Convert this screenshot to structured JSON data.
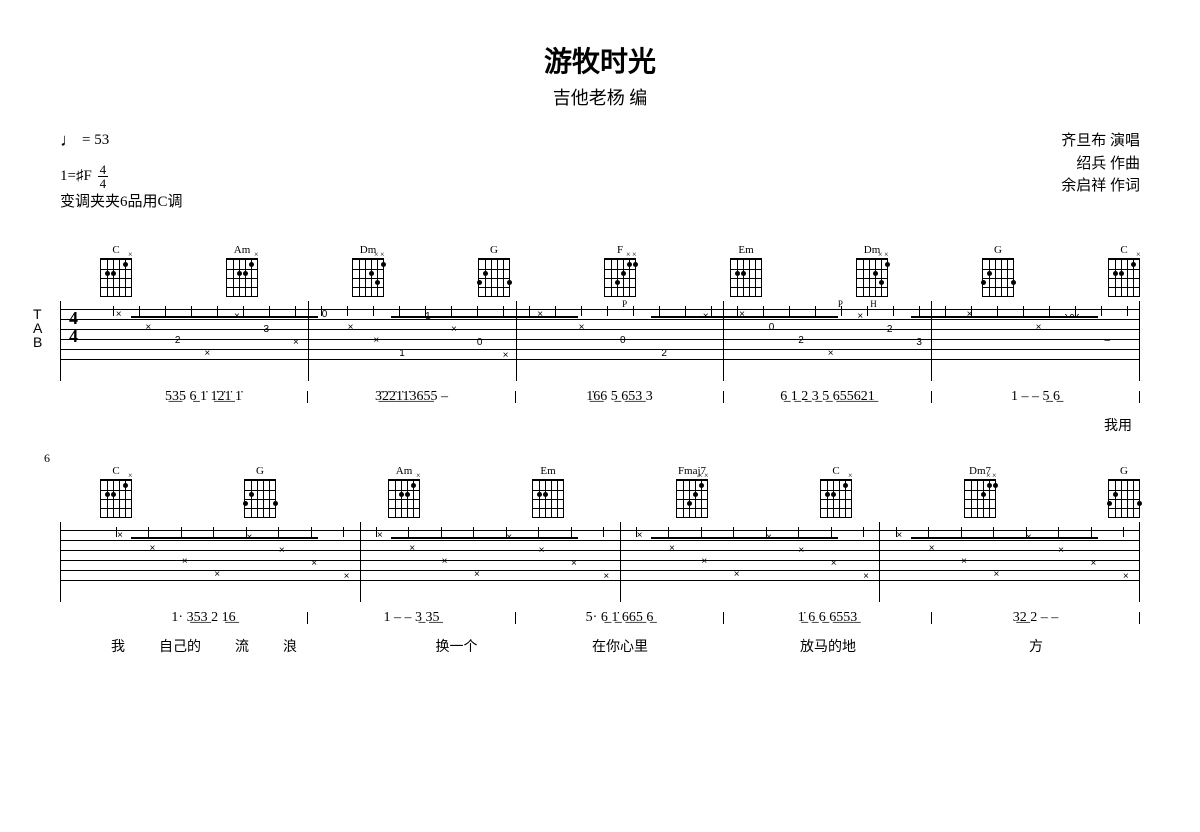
{
  "header": {
    "title": "游牧时光",
    "subtitle": "吉他老杨 编",
    "tempo_note": "♩",
    "tempo_eq": " = 53",
    "credits": [
      "齐旦布 演唱",
      "绍兵 作曲",
      "余启祥 作词"
    ],
    "key_line": "1=♯F",
    "time_top": "4",
    "time_bot": "4",
    "capo_line": "变调夹夹6品用C调"
  },
  "system1": {
    "chords": [
      "C",
      "Am",
      "Dm",
      "G",
      "F",
      "Em",
      "Dm",
      "G",
      "C"
    ],
    "tab_label_t": "T",
    "tab_label_a": "A",
    "tab_label_b": "B",
    "timesig_top": "4",
    "timesig_bot": "4",
    "techniques": [
      "P",
      "P",
      "H"
    ],
    "tab_measures": [
      [
        "×",
        "×",
        "2",
        "×",
        "×",
        "3",
        "×"
      ],
      [
        "0",
        "×",
        "×",
        "1",
        "1",
        "×",
        "0",
        "×"
      ],
      [
        "×",
        "×",
        "0",
        "2",
        "×"
      ],
      [
        "×",
        "0",
        "2",
        "×",
        "×",
        "2",
        "3"
      ],
      [
        "×",
        "×",
        "–"
      ]
    ],
    "tab_nums": {
      "m1": [
        "×",
        "2",
        "× 3×"
      ],
      "m2": [
        "0 ×× 1 1",
        "× 0 ×"
      ],
      "m3": [
        "0 2"
      ],
      "m4": [
        "1 0 3 0 2",
        "2 ×× 2",
        "3"
      ],
      "m5": []
    },
    "jianpu": [
      "5̲3̲5  6̲ 1̇ 1̲̇2̲̇1̲̇ 1̇",
      "3̲̇2̲̇2̲̇1̲̇1̲̇3̲6̲5̲5  –",
      "1̲̇6̲6  5̲ 6̲5̲3̲ 3",
      "6̲ 1̲ 2̲ 3̲ 5̲ 6̲5̲5̲6̲2̲1̲",
      "1  –  –  5̲ 6̲"
    ],
    "lyrics5": "我用"
  },
  "system2": {
    "bar_number": "6",
    "chords": [
      "C",
      "G",
      "Am",
      "Em",
      "Fmaj7",
      "C",
      "Dm7",
      "G"
    ],
    "tab_measures": [
      [
        "×",
        "×",
        "×",
        "×",
        "×",
        "×",
        "×",
        "×"
      ],
      [
        "×",
        "×",
        "×",
        "×",
        "×",
        "×",
        "×",
        "×"
      ],
      [
        "×",
        "×",
        "×",
        "×",
        "×",
        "×",
        "×",
        "×"
      ],
      [
        "×",
        "×",
        "×",
        "×",
        "×",
        "×",
        "×",
        "×"
      ]
    ],
    "jianpu": [
      "1·  3̲5̲3̲ 2  1̲6̲",
      "1  –  –  3̲ 3̲5̲",
      "5·  6̲ 1̲̇ 6̲6̲5̲  6̲",
      "1̲̇ 6̲ 6̲ 6̲5̲5̲3̲",
      "3̲2̲ 2  –  –"
    ],
    "lyrics": [
      [
        "我",
        "自己的",
        "流",
        "浪"
      ],
      [
        "",
        "换一个"
      ],
      [
        "在你心里"
      ],
      [
        "放马的地"
      ],
      [
        "方"
      ]
    ]
  },
  "chord_shapes": {
    "C": {
      "xo": [
        "×",
        "",
        "",
        "",
        "",
        ""
      ],
      "dots": [
        [
          1,
          1
        ],
        [
          3,
          2
        ],
        [
          4,
          2
        ]
      ]
    },
    "Am": {
      "xo": [
        "×",
        "",
        "",
        "",
        "",
        ""
      ],
      "dots": [
        [
          1,
          1
        ],
        [
          2,
          2
        ],
        [
          3,
          2
        ]
      ]
    },
    "Dm": {
      "xo": [
        "×",
        "×",
        "",
        "",
        "",
        ""
      ],
      "dots": [
        [
          0,
          1
        ],
        [
          1,
          3
        ],
        [
          2,
          2
        ]
      ]
    },
    "G": {
      "xo": [
        "",
        "",
        "",
        "",
        "",
        ""
      ],
      "dots": [
        [
          0,
          3
        ],
        [
          4,
          2
        ],
        [
          5,
          3
        ]
      ]
    },
    "F": {
      "xo": [
        "×",
        "×",
        "",
        "",
        "",
        ""
      ],
      "dots": [
        [
          0,
          1
        ],
        [
          1,
          1
        ],
        [
          2,
          2
        ],
        [
          3,
          3
        ]
      ]
    },
    "Em": {
      "xo": [
        "",
        "",
        "",
        "",
        "",
        ""
      ],
      "dots": [
        [
          3,
          2
        ],
        [
          4,
          2
        ]
      ]
    },
    "Fmaj7": {
      "xo": [
        "×",
        "×",
        "",
        "",
        "",
        ""
      ],
      "dots": [
        [
          1,
          1
        ],
        [
          2,
          2
        ],
        [
          3,
          3
        ]
      ]
    },
    "Dm7": {
      "xo": [
        "×",
        "×",
        "",
        "",
        "",
        ""
      ],
      "dots": [
        [
          0,
          1
        ],
        [
          1,
          1
        ],
        [
          2,
          2
        ]
      ]
    }
  },
  "colors": {
    "bg": "#ffffff",
    "fg": "#000000"
  }
}
